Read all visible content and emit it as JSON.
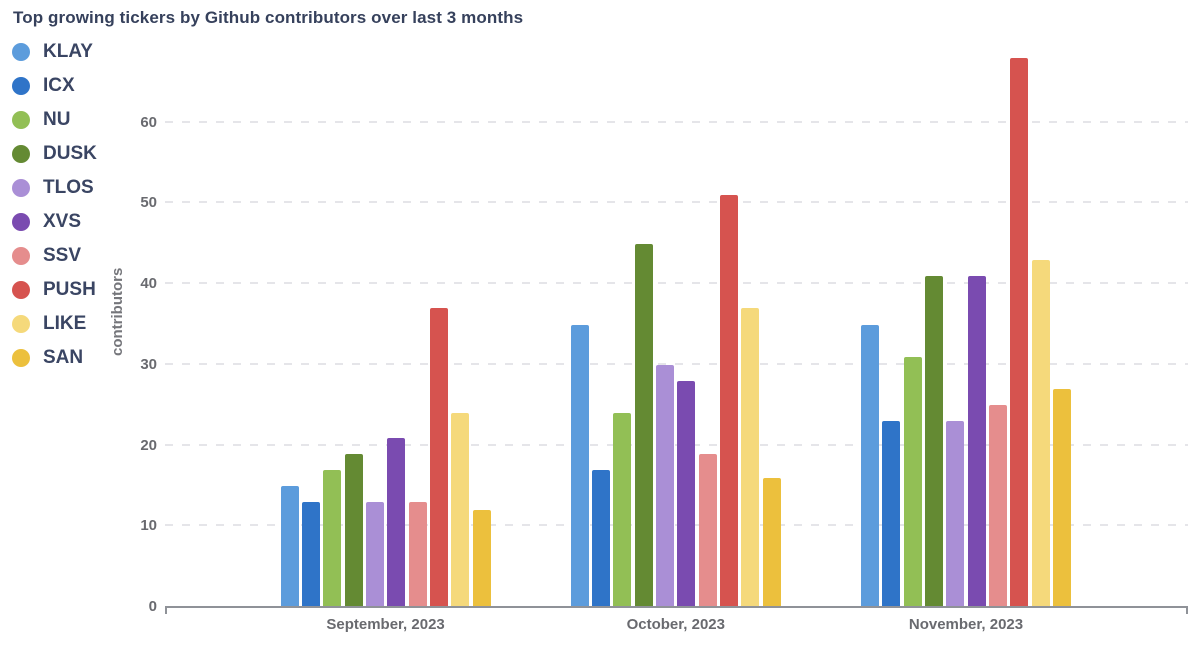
{
  "title": "Top growing tickers by Github contributors over last 3 months",
  "chart_data": {
    "type": "bar",
    "title": "Top growing tickers by Github contributors over last 3 months",
    "xlabel": "",
    "ylabel": "contributors",
    "ylim": [
      0,
      70
    ],
    "yticks": [
      0,
      10,
      20,
      30,
      40,
      50,
      60
    ],
    "grid": true,
    "gridline_color": "#E5E5E9",
    "legend_position": "left",
    "categories": [
      "September, 2023",
      "October, 2023",
      "November, 2023"
    ],
    "series": [
      {
        "name": "KLAY",
        "color": "#5C9CDC",
        "values": [
          15,
          35,
          35
        ]
      },
      {
        "name": "ICX",
        "color": "#2F74C8",
        "values": [
          13,
          17,
          23
        ]
      },
      {
        "name": "NU",
        "color": "#92BF55",
        "values": [
          17,
          24,
          31
        ]
      },
      {
        "name": "DUSK",
        "color": "#648A33",
        "values": [
          19,
          45,
          41
        ]
      },
      {
        "name": "TLOS",
        "color": "#AA8FD6",
        "values": [
          13,
          30,
          23
        ]
      },
      {
        "name": "XVS",
        "color": "#7A4BB0",
        "values": [
          21,
          28,
          41
        ]
      },
      {
        "name": "SSV",
        "color": "#E58D8D",
        "values": [
          13,
          19,
          25
        ]
      },
      {
        "name": "PUSH",
        "color": "#D6534F",
        "values": [
          37,
          51,
          68
        ]
      },
      {
        "name": "LIKE",
        "color": "#F5D97B",
        "values": [
          24,
          37,
          43
        ]
      },
      {
        "name": "SAN",
        "color": "#ECC03D",
        "values": [
          12,
          16,
          27
        ]
      }
    ]
  }
}
